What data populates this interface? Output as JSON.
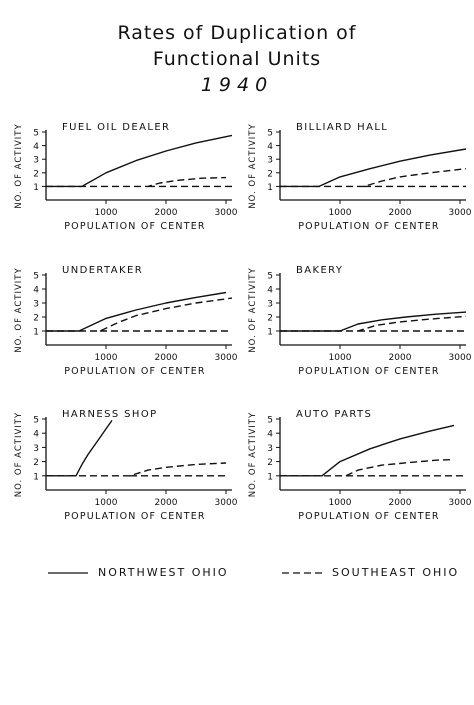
{
  "title": {
    "line1": "Rates of Duplication of",
    "line2": "Functional Units",
    "line3": "1940"
  },
  "legend": {
    "northwest": "NORTHWEST OHIO",
    "southeast": "SOUTHEAST OHIO"
  },
  "colors": {
    "line": "#111111"
  },
  "chart_data": [
    {
      "type": "line",
      "title": "FUEL OIL DEALER",
      "xlabel": "POPULATION OF CENTER",
      "ylabel": "NO. OF ACTIVITY",
      "xlim": [
        0,
        3100
      ],
      "ylim": [
        0,
        5
      ],
      "xticks": [
        1000,
        2000,
        3000
      ],
      "yticks": [
        1,
        2,
        3,
        4,
        5
      ],
      "series": [
        {
          "key": "northwest",
          "style": "solid",
          "x": [
            0,
            600,
            1000,
            1500,
            2000,
            2500,
            3100
          ],
          "y": [
            1,
            1,
            2.0,
            2.9,
            3.6,
            4.2,
            4.75
          ]
        },
        {
          "key": "southeast",
          "style": "dashed",
          "x": [
            0,
            1700,
            1900,
            2200,
            2600,
            3000
          ],
          "y": [
            1,
            1,
            1.25,
            1.45,
            1.6,
            1.65
          ]
        },
        {
          "key": "southeast-base",
          "style": "dashed",
          "x": [
            1700,
            3100
          ],
          "y": [
            1,
            1
          ]
        }
      ]
    },
    {
      "type": "line",
      "title": "BILLIARD HALL",
      "xlabel": "POPULATION OF CENTER",
      "ylabel": "NO. OF ACTIVITY",
      "xlim": [
        0,
        3100
      ],
      "ylim": [
        0,
        5
      ],
      "xticks": [
        1000,
        2000,
        3000
      ],
      "yticks": [
        1,
        2,
        3,
        4,
        5
      ],
      "series": [
        {
          "key": "northwest",
          "style": "solid",
          "x": [
            0,
            650,
            1000,
            1500,
            2000,
            2500,
            3100
          ],
          "y": [
            1,
            1,
            1.7,
            2.3,
            2.85,
            3.3,
            3.75
          ]
        },
        {
          "key": "southeast",
          "style": "dashed",
          "x": [
            0,
            1400,
            1700,
            2000,
            2500,
            3100
          ],
          "y": [
            1,
            1,
            1.4,
            1.7,
            2.0,
            2.3
          ]
        },
        {
          "key": "southeast-base",
          "style": "dashed",
          "x": [
            1400,
            3100
          ],
          "y": [
            1,
            1
          ]
        }
      ]
    },
    {
      "type": "line",
      "title": "UNDERTAKER",
      "xlabel": "POPULATION OF CENTER",
      "ylabel": "NO. OF ACTIVITY",
      "xlim": [
        0,
        3100
      ],
      "ylim": [
        0,
        5
      ],
      "xticks": [
        1000,
        2000,
        3000
      ],
      "yticks": [
        1,
        2,
        3,
        4,
        5
      ],
      "series": [
        {
          "key": "northwest",
          "style": "solid",
          "x": [
            0,
            550,
            1000,
            1500,
            2000,
            2500,
            3000
          ],
          "y": [
            1,
            1,
            1.9,
            2.5,
            3.0,
            3.4,
            3.75
          ]
        },
        {
          "key": "southeast",
          "style": "dashed",
          "x": [
            0,
            900,
            1200,
            1500,
            2000,
            2500,
            3100
          ],
          "y": [
            1,
            1,
            1.6,
            2.1,
            2.6,
            3.0,
            3.35
          ]
        },
        {
          "key": "southeast-base",
          "style": "dashed",
          "x": [
            900,
            3100
          ],
          "y": [
            1,
            1
          ]
        }
      ]
    },
    {
      "type": "line",
      "title": "BAKERY",
      "xlabel": "POPULATION OF CENTER",
      "ylabel": "NO. OF ACTIVITY",
      "xlim": [
        0,
        3100
      ],
      "ylim": [
        0,
        5
      ],
      "xticks": [
        1000,
        2000,
        3000
      ],
      "yticks": [
        1,
        2,
        3,
        4,
        5
      ],
      "series": [
        {
          "key": "northwest",
          "style": "solid",
          "x": [
            0,
            1000,
            1300,
            1700,
            2100,
            2600,
            3100
          ],
          "y": [
            1,
            1,
            1.5,
            1.8,
            2.0,
            2.2,
            2.35
          ]
        },
        {
          "key": "southeast",
          "style": "dashed",
          "x": [
            0,
            1300,
            1600,
            2000,
            2500,
            3100
          ],
          "y": [
            1,
            1,
            1.4,
            1.65,
            1.85,
            2.05
          ]
        },
        {
          "key": "southeast-base",
          "style": "dashed",
          "x": [
            1300,
            3100
          ],
          "y": [
            1,
            1
          ]
        }
      ]
    },
    {
      "type": "line",
      "title": "HARNESS SHOP",
      "xlabel": "POPULATION OF CENTER",
      "ylabel": "NO. OF ACTIVITY",
      "xlim": [
        0,
        3100
      ],
      "ylim": [
        0,
        5
      ],
      "xticks": [
        1000,
        2000,
        3000
      ],
      "yticks": [
        1,
        2,
        3,
        4,
        5
      ],
      "series": [
        {
          "key": "northwest",
          "style": "solid",
          "x": [
            0,
            500,
            600,
            700,
            800,
            900,
            1000,
            1100
          ],
          "y": [
            1,
            1,
            1.8,
            2.5,
            3.1,
            3.7,
            4.3,
            4.9
          ]
        },
        {
          "key": "southeast",
          "style": "dashed",
          "x": [
            0,
            1400,
            1700,
            2000,
            2500,
            3000
          ],
          "y": [
            1,
            1,
            1.4,
            1.6,
            1.8,
            1.9
          ]
        },
        {
          "key": "southeast-base",
          "style": "dashed",
          "x": [
            1400,
            3000
          ],
          "y": [
            1,
            1
          ]
        }
      ]
    },
    {
      "type": "line",
      "title": "AUTO  PARTS",
      "xlabel": "POPULATION OF CENTER",
      "ylabel": "NO. OF ACTIVITY",
      "xlim": [
        0,
        3100
      ],
      "ylim": [
        0,
        5
      ],
      "xticks": [
        1000,
        2000,
        3000
      ],
      "yticks": [
        1,
        2,
        3,
        4,
        5
      ],
      "series": [
        {
          "key": "northwest",
          "style": "solid",
          "x": [
            0,
            700,
            1000,
            1500,
            2000,
            2500,
            2900
          ],
          "y": [
            1,
            1,
            2.0,
            2.9,
            3.6,
            4.15,
            4.55
          ]
        },
        {
          "key": "southeast",
          "style": "dashed",
          "x": [
            0,
            1100,
            1300,
            1700,
            2200,
            2600,
            2900
          ],
          "y": [
            1,
            1,
            1.4,
            1.75,
            1.95,
            2.1,
            2.15
          ]
        },
        {
          "key": "southeast-base",
          "style": "dashed",
          "x": [
            1100,
            3100
          ],
          "y": [
            1,
            1
          ]
        }
      ]
    }
  ]
}
